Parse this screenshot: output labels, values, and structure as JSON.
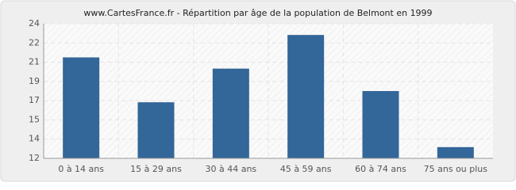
{
  "chart_data": {
    "type": "bar",
    "title": "www.CartesFrance.fr - Répartition par âge de la population de Belmont en 1999",
    "categories": [
      "0 à 14 ans",
      "15 à 29 ans",
      "30 à 44 ans",
      "45 à 59 ans",
      "60 à 74 ans",
      "75 ans ou plus"
    ],
    "values": [
      21,
      17,
      20,
      23,
      18,
      13
    ],
    "color": "#336699",
    "ylim": [
      12,
      24
    ],
    "yticks": [
      12,
      {
        "value": 13.714,
        "label": "14"
      },
      {
        "value": 15.429,
        "label": "15"
      },
      {
        "value": 17.143,
        "label": "17"
      },
      {
        "value": 18.857,
        "label": "19"
      },
      {
        "value": 20.571,
        "label": "21"
      },
      {
        "value": 22.286,
        "label": "22"
      },
      24
    ],
    "grid": true
  }
}
